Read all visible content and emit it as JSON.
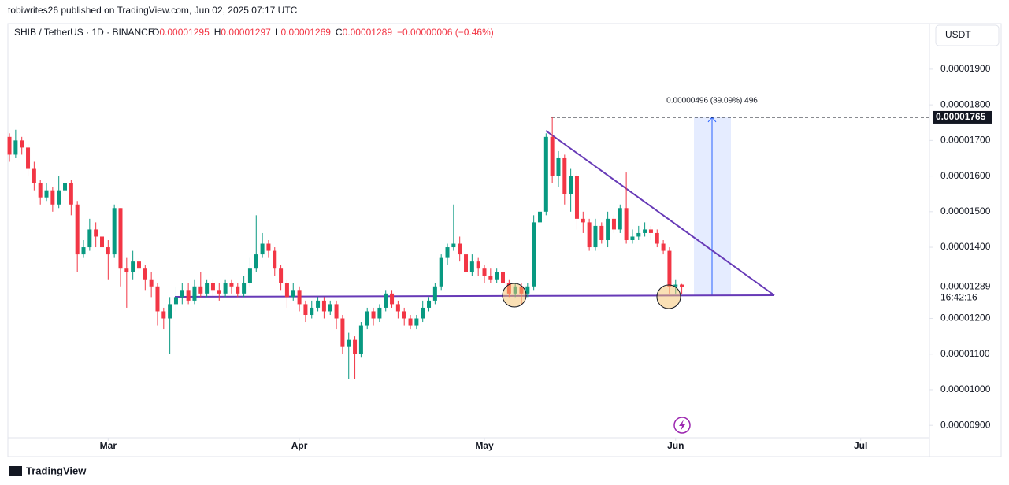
{
  "header": {
    "publisher": "tobiwrites26 published on TradingView.com, Jun 02, 2025 07:17 UTC",
    "symbol": "SHIB / TetherUS · 1D · BINANCE",
    "ohlc": [
      {
        "key": "O",
        "value": "0.00001295"
      },
      {
        "key": "H",
        "value": "0.00001297"
      },
      {
        "key": "L",
        "value": "0.00001269"
      },
      {
        "key": "C",
        "value": "0.00001289"
      }
    ],
    "change": "−0.00000006 (−0.46%)",
    "currency": "USDT"
  },
  "footer": {
    "brand": "TradingView"
  },
  "chart_data": {
    "type": "candlestick",
    "up_color": "#089981",
    "down_color": "#f23645",
    "categories": [
      null,
      null,
      null,
      null,
      null,
      null,
      null,
      null,
      null,
      null,
      null,
      null,
      null,
      null,
      null,
      null,
      null,
      null,
      null,
      null,
      null,
      null,
      null,
      null,
      null,
      null,
      null,
      null,
      null,
      null,
      null,
      null,
      null,
      null,
      null,
      null,
      null,
      null,
      null,
      null,
      null,
      null,
      null,
      null,
      null,
      null,
      null,
      null,
      null,
      null,
      null,
      null,
      null,
      null,
      null,
      null,
      null,
      null,
      null,
      null,
      null,
      null,
      null,
      null,
      null,
      null,
      null,
      null,
      null,
      null,
      null,
      null,
      null,
      null,
      null,
      null,
      null,
      null,
      null,
      null,
      null,
      null,
      null,
      null,
      null,
      null,
      null,
      null,
      null,
      null,
      null,
      null,
      null,
      null,
      null,
      null,
      null,
      null,
      null,
      null,
      null,
      null,
      null,
      null,
      null,
      null,
      null,
      null,
      null,
      null
    ],
    "open": [
      1.71e-05,
      1.66e-05,
      1.7e-05,
      1.68e-05,
      1.62e-05,
      1.58e-05,
      1.54e-05,
      1.56e-05,
      1.52e-05,
      1.56e-05,
      1.58e-05,
      1.52e-05,
      1.38e-05,
      1.4e-05,
      1.45e-05,
      1.43e-05,
      1.4e-05,
      1.38e-05,
      1.51e-05,
      1.34e-05,
      1.33e-05,
      1.36e-05,
      1.34e-05,
      1.31e-05,
      1.29e-05,
      1.22e-05,
      1.2e-05,
      1.24e-05,
      1.26e-05,
      1.28e-05,
      1.25e-05,
      1.29e-05,
      1.27e-05,
      1.3e-05,
      1.28e-05,
      1.27e-05,
      1.3e-05,
      1.29e-05,
      1.27e-05,
      1.3e-05,
      1.34e-05,
      1.38e-05,
      1.41e-05,
      1.39e-05,
      1.34e-05,
      1.3e-05,
      1.26e-05,
      1.28e-05,
      1.24e-05,
      1.21e-05,
      1.23e-05,
      1.25e-05,
      1.22e-05,
      1.24e-05,
      1.2e-05,
      1.12e-05,
      1.14e-05,
      1.1e-05,
      1.18e-05,
      1.22e-05,
      1.2e-05,
      1.23e-05,
      1.27e-05,
      1.24e-05,
      1.22e-05,
      1.2e-05,
      1.18e-05,
      1.2e-05,
      1.23e-05,
      1.25e-05,
      1.29e-05,
      1.37e-05,
      1.4e-05,
      1.41e-05,
      1.38e-05,
      1.33e-05,
      1.36e-05,
      1.34e-05,
      1.32e-05,
      1.31e-05,
      1.33e-05,
      1.3e-05,
      1.27e-05,
      1.29e-05,
      1.27e-05,
      1.29e-05,
      1.47e-05,
      1.5e-05,
      1.71e-05,
      1.6e-05,
      1.65e-05,
      1.55e-05,
      1.6e-05,
      1.48e-05,
      1.47e-05,
      1.4e-05,
      1.46e-05,
      1.42e-05,
      1.48e-05,
      1.45e-05,
      1.51e-05,
      1.42e-05,
      1.43e-05,
      1.44e-05,
      1.45e-05,
      1.44e-05,
      1.41e-05,
      1.39e-05,
      1.29e-05,
      1.295e-05
    ],
    "high": [
      1.72e-05,
      1.73e-05,
      1.71e-05,
      1.69e-05,
      1.64e-05,
      1.59e-05,
      1.58e-05,
      1.57e-05,
      1.6e-05,
      1.59e-05,
      1.59e-05,
      1.53e-05,
      1.42e-05,
      1.48e-05,
      1.47e-05,
      1.44e-05,
      1.42e-05,
      1.52e-05,
      1.51e-05,
      1.37e-05,
      1.39e-05,
      1.37e-05,
      1.35e-05,
      1.33e-05,
      1.3e-05,
      1.23e-05,
      1.26e-05,
      1.29e-05,
      1.3e-05,
      1.3e-05,
      1.31e-05,
      1.33e-05,
      1.31e-05,
      1.31e-05,
      1.3e-05,
      1.31e-05,
      1.31e-05,
      1.3e-05,
      1.32e-05,
      1.37e-05,
      1.49e-05,
      1.44e-05,
      1.42e-05,
      1.4e-05,
      1.35e-05,
      1.31e-05,
      1.3e-05,
      1.29e-05,
      1.25e-05,
      1.25e-05,
      1.26e-05,
      1.26e-05,
      1.25e-05,
      1.25e-05,
      1.21e-05,
      1.16e-05,
      1.15e-05,
      1.19e-05,
      1.23e-05,
      1.23e-05,
      1.24e-05,
      1.28e-05,
      1.28e-05,
      1.25e-05,
      1.23e-05,
      1.21e-05,
      1.21e-05,
      1.25e-05,
      1.26e-05,
      1.3e-05,
      1.38e-05,
      1.41e-05,
      1.52e-05,
      1.43e-05,
      1.39e-05,
      1.38e-05,
      1.37e-05,
      1.35e-05,
      1.34e-05,
      1.34e-05,
      1.34e-05,
      1.31e-05,
      1.3e-05,
      1.3e-05,
      1.3e-05,
      1.49e-05,
      1.54e-05,
      1.72e-05,
      1.765e-05,
      1.67e-05,
      1.66e-05,
      1.62e-05,
      1.61e-05,
      1.5e-05,
      1.48e-05,
      1.48e-05,
      1.47e-05,
      1.5e-05,
      1.49e-05,
      1.52e-05,
      1.61e-05,
      1.45e-05,
      1.46e-05,
      1.47e-05,
      1.46e-05,
      1.45e-05,
      1.42e-05,
      1.4e-05,
      1.31e-05,
      1.297e-05
    ],
    "low": [
      1.64e-05,
      1.65e-05,
      1.66e-05,
      1.6e-05,
      1.56e-05,
      1.52e-05,
      1.53e-05,
      1.5e-05,
      1.51e-05,
      1.55e-05,
      1.49e-05,
      1.33e-05,
      1.37e-05,
      1.39e-05,
      1.4e-05,
      1.37e-05,
      1.31e-05,
      1.37e-05,
      1.29e-05,
      1.23e-05,
      1.31e-05,
      1.32e-05,
      1.28e-05,
      1.26e-05,
      1.18e-05,
      1.17e-05,
      1.1e-05,
      1.22e-05,
      1.24e-05,
      1.24e-05,
      1.24e-05,
      1.26e-05,
      1.26e-05,
      1.26e-05,
      1.25e-05,
      1.26e-05,
      1.27e-05,
      1.26e-05,
      1.26e-05,
      1.29e-05,
      1.33e-05,
      1.37e-05,
      1.37e-05,
      1.32e-05,
      1.28e-05,
      1.23e-05,
      1.25e-05,
      1.22e-05,
      1.19e-05,
      1.2e-05,
      1.22e-05,
      1.2e-05,
      1.21e-05,
      1.17e-05,
      1.1e-05,
      1.03e-05,
      1.03e-05,
      1.09e-05,
      1.17e-05,
      1.18e-05,
      1.19e-05,
      1.22e-05,
      1.23e-05,
      1.2e-05,
      1.18e-05,
      1.17e-05,
      1.17e-05,
      1.19e-05,
      1.22e-05,
      1.24e-05,
      1.28e-05,
      1.35e-05,
      1.39e-05,
      1.36e-05,
      1.31e-05,
      1.32e-05,
      1.32e-05,
      1.3e-05,
      1.3e-05,
      1.3e-05,
      1.29e-05,
      1.26e-05,
      1.26e-05,
      1.24e-05,
      1.26e-05,
      1.28e-05,
      1.46e-05,
      1.49e-05,
      1.58e-05,
      1.57e-05,
      1.52e-05,
      1.5e-05,
      1.45e-05,
      1.44e-05,
      1.39e-05,
      1.39e-05,
      1.41e-05,
      1.4e-05,
      1.44e-05,
      1.44e-05,
      1.41e-05,
      1.41e-05,
      1.42e-05,
      1.43e-05,
      1.42e-05,
      1.4e-05,
      1.38e-05,
      1.27e-05,
      1.27e-05,
      1.269e-05
    ],
    "close": [
      1.66e-05,
      1.7e-05,
      1.68e-05,
      1.62e-05,
      1.58e-05,
      1.54e-05,
      1.56e-05,
      1.52e-05,
      1.56e-05,
      1.58e-05,
      1.52e-05,
      1.38e-05,
      1.4e-05,
      1.45e-05,
      1.43e-05,
      1.4e-05,
      1.38e-05,
      1.51e-05,
      1.34e-05,
      1.33e-05,
      1.36e-05,
      1.34e-05,
      1.31e-05,
      1.29e-05,
      1.22e-05,
      1.2e-05,
      1.24e-05,
      1.26e-05,
      1.28e-05,
      1.25e-05,
      1.29e-05,
      1.27e-05,
      1.3e-05,
      1.28e-05,
      1.27e-05,
      1.3e-05,
      1.29e-05,
      1.27e-05,
      1.3e-05,
      1.34e-05,
      1.38e-05,
      1.41e-05,
      1.39e-05,
      1.34e-05,
      1.3e-05,
      1.26e-05,
      1.28e-05,
      1.24e-05,
      1.21e-05,
      1.23e-05,
      1.25e-05,
      1.22e-05,
      1.24e-05,
      1.2e-05,
      1.12e-05,
      1.14e-05,
      1.1e-05,
      1.18e-05,
      1.22e-05,
      1.2e-05,
      1.23e-05,
      1.27e-05,
      1.24e-05,
      1.22e-05,
      1.2e-05,
      1.18e-05,
      1.2e-05,
      1.23e-05,
      1.25e-05,
      1.29e-05,
      1.37e-05,
      1.4e-05,
      1.41e-05,
      1.38e-05,
      1.33e-05,
      1.36e-05,
      1.34e-05,
      1.32e-05,
      1.31e-05,
      1.33e-05,
      1.3e-05,
      1.27e-05,
      1.29e-05,
      1.27e-05,
      1.29e-05,
      1.47e-05,
      1.5e-05,
      1.71e-05,
      1.6e-05,
      1.65e-05,
      1.55e-05,
      1.6e-05,
      1.48e-05,
      1.47e-05,
      1.4e-05,
      1.46e-05,
      1.42e-05,
      1.48e-05,
      1.45e-05,
      1.51e-05,
      1.42e-05,
      1.43e-05,
      1.44e-05,
      1.45e-05,
      1.44e-05,
      1.41e-05,
      1.39e-05,
      1.29e-05,
      1.295e-05,
      1.289e-05
    ],
    "xlim": [
      -0.26,
      149.15
    ],
    "xticks": [
      {
        "value": 16,
        "label": "Mar"
      },
      {
        "value": 47,
        "label": "Apr"
      },
      {
        "value": 77,
        "label": "May"
      },
      {
        "value": 108,
        "label": "Jun"
      },
      {
        "value": 138,
        "label": "Jul"
      }
    ],
    "ylim": [
      8.12e-06,
      2.028e-05
    ],
    "yticks": [
      {
        "value": 1.9e-05,
        "label": "0.00001900"
      },
      {
        "value": 1.8e-05,
        "label": "0.00001800"
      },
      {
        "value": 1.7e-05,
        "label": "0.00001700"
      },
      {
        "value": 1.6e-05,
        "label": "0.00001600"
      },
      {
        "value": 1.5e-05,
        "label": "0.00001500"
      },
      {
        "value": 1.4e-05,
        "label": "0.00001400"
      },
      {
        "value": 1.2e-05,
        "label": "0.00001200"
      },
      {
        "value": 1.1e-05,
        "label": "0.00001100"
      },
      {
        "value": 1e-05,
        "label": "0.00001000"
      },
      {
        "value": 9e-06,
        "label": "0.00000900"
      }
    ],
    "annotations": {
      "last_price": {
        "value": 1.289e-05,
        "label": "0.00001289",
        "countdown": "16:42:16"
      },
      "target": {
        "value": 1.765e-05,
        "label": "0.00001765"
      },
      "measure": "0.00000496 (39.09%) 496"
    }
  }
}
